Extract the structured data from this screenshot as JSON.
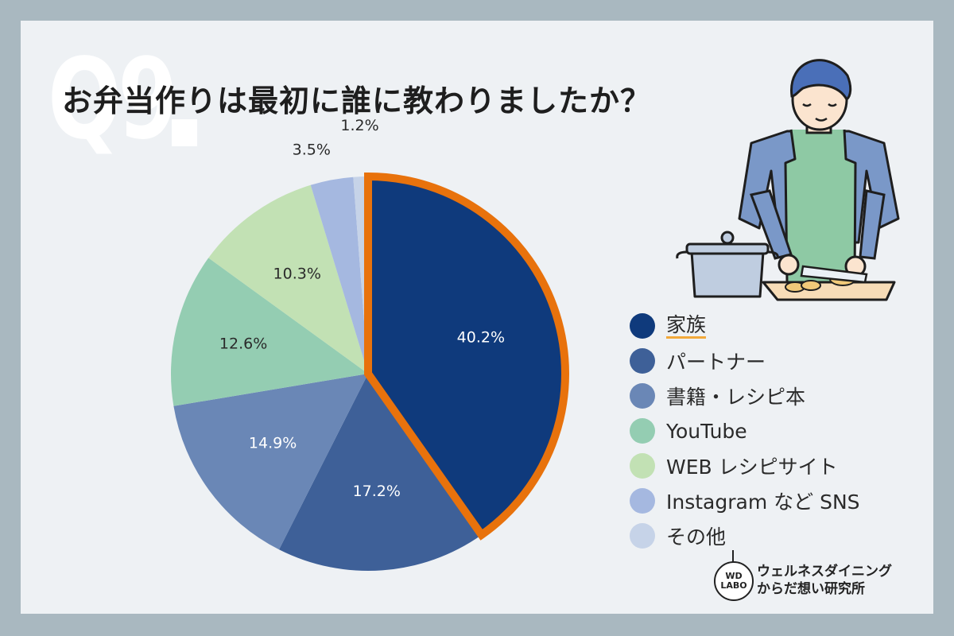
{
  "q_mark": "Q9",
  "title": "お弁当作りは最初に誰に教わりましたか？",
  "chart_data": {
    "type": "pie",
    "start_angle_deg": 0,
    "direction": "clockwise",
    "highlight_index": 0,
    "highlight_color": "#e8720c",
    "slices": [
      {
        "label": "家族",
        "value": 40.2,
        "display": "40.2%",
        "color": "#0f3a7c"
      },
      {
        "label": "パートナー",
        "value": 17.2,
        "display": "17.2%",
        "color": "#3e6098"
      },
      {
        "label": "書籍・レシピ本",
        "value": 14.9,
        "display": "14.9%",
        "color": "#6a87b6"
      },
      {
        "label": "YouTube",
        "value": 12.6,
        "display": "12.6%",
        "color": "#94cdb2"
      },
      {
        "label": "WEB レシピサイト",
        "value": 10.3,
        "display": "10.3%",
        "color": "#c2e1b4"
      },
      {
        "label": "Instagram など SNS",
        "value": 3.5,
        "display": "3.5%",
        "color": "#a5b8e0"
      },
      {
        "label": "その他",
        "value": 1.2,
        "display": "1.2%",
        "color": "#c6d3e8"
      }
    ],
    "legend_position": "right"
  },
  "legend": {
    "items": [
      {
        "label": "家族",
        "color": "#0f3a7c",
        "highlighted": true
      },
      {
        "label": "パートナー",
        "color": "#3e6098"
      },
      {
        "label": "書籍・レシピ本",
        "color": "#6a87b6"
      },
      {
        "label": "YouTube",
        "color": "#94cdb2"
      },
      {
        "label": "WEB レシピサイト",
        "color": "#c2e1b4"
      },
      {
        "label": "Instagram など SNS",
        "color": "#a5b8e0"
      },
      {
        "label": "その他",
        "color": "#c6d3e8"
      }
    ]
  },
  "footer": {
    "logo_top": "WD",
    "logo_bottom": "LABO",
    "line1": "ウェルネスダイニング",
    "line2": "からだ想い研究所"
  },
  "illustration": "person-cooking-icon"
}
